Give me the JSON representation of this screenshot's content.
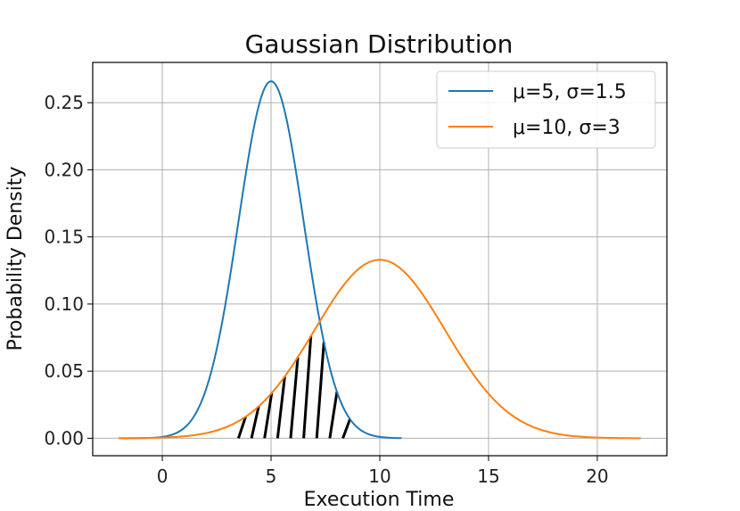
{
  "chart_data": {
    "type": "line",
    "title": "Gaussian Distribution",
    "xlabel": "Execution Time",
    "ylabel": "Probability Density",
    "xlim": [
      -3.2,
      23.2
    ],
    "ylim": [
      -0.013,
      0.28
    ],
    "xticks": [
      0,
      5,
      10,
      15,
      20
    ],
    "yticks": [
      0.0,
      0.05,
      0.1,
      0.15,
      0.2,
      0.25
    ],
    "ytick_labels": [
      "0.00",
      "0.05",
      "0.10",
      "0.15",
      "0.20",
      "0.25"
    ],
    "grid": true,
    "legend_position": "top-right",
    "series": [
      {
        "name": "μ=5, σ=1.5",
        "mu": 5,
        "sigma": 1.5,
        "x_range": [
          -2,
          11
        ],
        "color": "#1f77b4"
      },
      {
        "name": "μ=10, σ=3",
        "mu": 10,
        "sigma": 3,
        "x_range": [
          -2,
          22
        ],
        "color": "#ff7f0e"
      }
    ],
    "shaded_region": {
      "x_range": [
        3.5,
        8.8
      ],
      "fill": "hatch",
      "color": "#000000"
    }
  }
}
